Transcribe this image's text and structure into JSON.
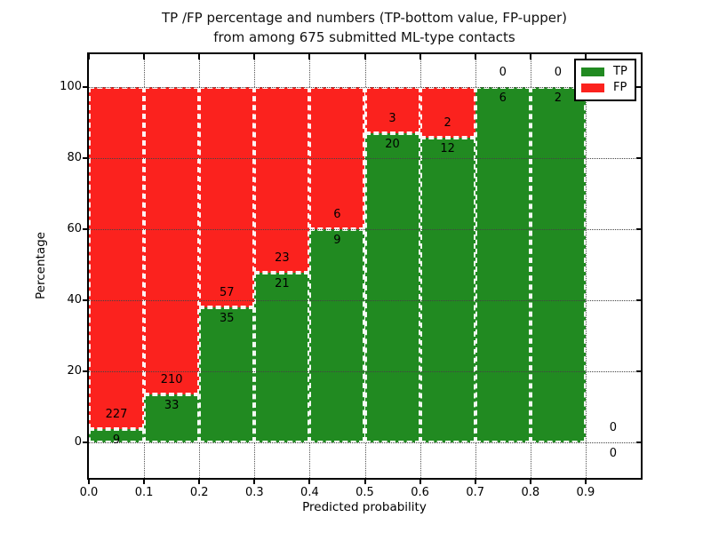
{
  "figure": {
    "title_line1": "TP /FP percentage and numbers (TP-bottom value, FP-upper)",
    "title_line2": "from among 675 submitted ML-type contacts",
    "xlabel": "Predicted probability",
    "ylabel": "Percentage"
  },
  "legend": {
    "position": "upper right",
    "items": [
      {
        "label": "TP",
        "color": "#218a21"
      },
      {
        "label": "FP",
        "color": "#fb221e"
      }
    ]
  },
  "chart_data": {
    "type": "bar",
    "stacked": true,
    "title": "TP /FP percentage and numbers (TP-bottom value, FP-upper) from among 675 submitted ML-type contacts",
    "xlabel": "Predicted probability",
    "ylabel": "Percentage",
    "xlim": [
      0.0,
      1.0
    ],
    "ylim": [
      -10,
      110
    ],
    "grid": true,
    "legend_position": "upper right",
    "total_contacts": 675,
    "x_tick_labels": [
      "0.0",
      "0.1",
      "0.2",
      "0.3",
      "0.4",
      "0.5",
      "0.6",
      "0.7",
      "0.8",
      "0.9"
    ],
    "y_tick_values": [
      0,
      20,
      40,
      60,
      80,
      100
    ],
    "y_tick_labels": [
      "0",
      "20",
      "40",
      "60",
      "80",
      "100"
    ],
    "series": [
      {
        "name": "TP",
        "color": "#218a21"
      },
      {
        "name": "FP",
        "color": "#fb221e"
      }
    ],
    "bins": [
      {
        "x0": 0.0,
        "x1": 0.1,
        "tp": 9,
        "fp": 227,
        "tp_pct": 3.81,
        "fp_pct": 96.19
      },
      {
        "x0": 0.1,
        "x1": 0.2,
        "tp": 33,
        "fp": 210,
        "tp_pct": 13.58,
        "fp_pct": 86.42
      },
      {
        "x0": 0.2,
        "x1": 0.3,
        "tp": 35,
        "fp": 57,
        "tp_pct": 38.04,
        "fp_pct": 61.96
      },
      {
        "x0": 0.3,
        "x1": 0.4,
        "tp": 21,
        "fp": 23,
        "tp_pct": 47.73,
        "fp_pct": 52.27
      },
      {
        "x0": 0.4,
        "x1": 0.5,
        "tp": 9,
        "fp": 6,
        "tp_pct": 60.0,
        "fp_pct": 40.0
      },
      {
        "x0": 0.5,
        "x1": 0.6,
        "tp": 20,
        "fp": 3,
        "tp_pct": 86.96,
        "fp_pct": 13.04
      },
      {
        "x0": 0.6,
        "x1": 0.7,
        "tp": 12,
        "fp": 2,
        "tp_pct": 85.71,
        "fp_pct": 14.29
      },
      {
        "x0": 0.7,
        "x1": 0.8,
        "tp": 6,
        "fp": 0,
        "tp_pct": 100.0,
        "fp_pct": 0.0
      },
      {
        "x0": 0.8,
        "x1": 0.9,
        "tp": 2,
        "fp": 0,
        "tp_pct": 100.0,
        "fp_pct": 0.0
      },
      {
        "x0": 0.9,
        "x1": 1.0,
        "tp": 0,
        "fp": 0,
        "tp_pct": 0.0,
        "fp_pct": 0.0
      }
    ]
  }
}
